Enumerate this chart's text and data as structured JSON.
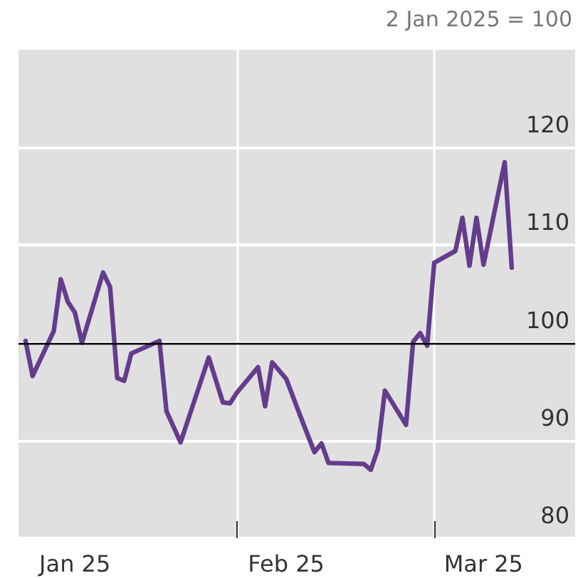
{
  "chart_data": {
    "type": "line",
    "annotations": [
      "2 Jan 2025 = 100"
    ],
    "x": [
      "2025-01-02",
      "2025-01-03",
      "2025-01-06",
      "2025-01-07",
      "2025-01-08",
      "2025-01-09",
      "2025-01-10",
      "2025-01-13",
      "2025-01-14",
      "2025-01-15",
      "2025-01-16",
      "2025-01-17",
      "2025-01-21",
      "2025-01-22",
      "2025-01-24",
      "2025-01-28",
      "2025-01-30",
      "2025-01-31",
      "2025-02-01",
      "2025-02-04",
      "2025-02-05",
      "2025-02-06",
      "2025-02-08",
      "2025-02-10",
      "2025-02-12",
      "2025-02-13",
      "2025-02-14",
      "2025-02-19",
      "2025-02-20",
      "2025-02-21",
      "2025-02-22",
      "2025-02-25",
      "2025-02-26",
      "2025-02-27",
      "2025-02-28",
      "2025-03-01",
      "2025-03-04",
      "2025-03-05",
      "2025-03-06",
      "2025-03-07",
      "2025-03-08",
      "2025-03-11",
      "2025-03-12"
    ],
    "series": [
      {
        "color": "#643c8c",
        "values": [
          100.2,
          96.6,
          101.2,
          106.5,
          104.2,
          103.1,
          100.0,
          107.2,
          105.7,
          96.4,
          96.1,
          98.9,
          100.2,
          93.0,
          89.8,
          98.5,
          93.9,
          93.8,
          94.9,
          97.5,
          93.5,
          98.0,
          96.3,
          92.5,
          88.8,
          89.7,
          87.7,
          87.6,
          87.0,
          89.1,
          95.1,
          91.6,
          100.1,
          101.0,
          99.7,
          108.2,
          109.4,
          112.8,
          107.9,
          112.8,
          108.0,
          118.5,
          107.7
        ]
      }
    ],
    "xlim": [
      "2025-01-01",
      "2025-03-21"
    ],
    "xticks": [
      {
        "value": "2025-02-01",
        "label": null
      },
      {
        "value": "2025-03-01",
        "label": null
      },
      {
        "value": "2025-01-09",
        "label": "Jan 25"
      },
      {
        "value": "2025-02-08",
        "label": "Feb 25"
      },
      {
        "value": "2025-03-08",
        "label": "Mar 25"
      }
    ],
    "ylim": [
      80,
      130
    ],
    "yticks": [
      80,
      90,
      100,
      110,
      120
    ],
    "ref_lines": [
      {
        "axis": "y",
        "value": 100,
        "color": "#000000"
      }
    ],
    "grid": true,
    "marker": "none",
    "line_style": "solid"
  }
}
